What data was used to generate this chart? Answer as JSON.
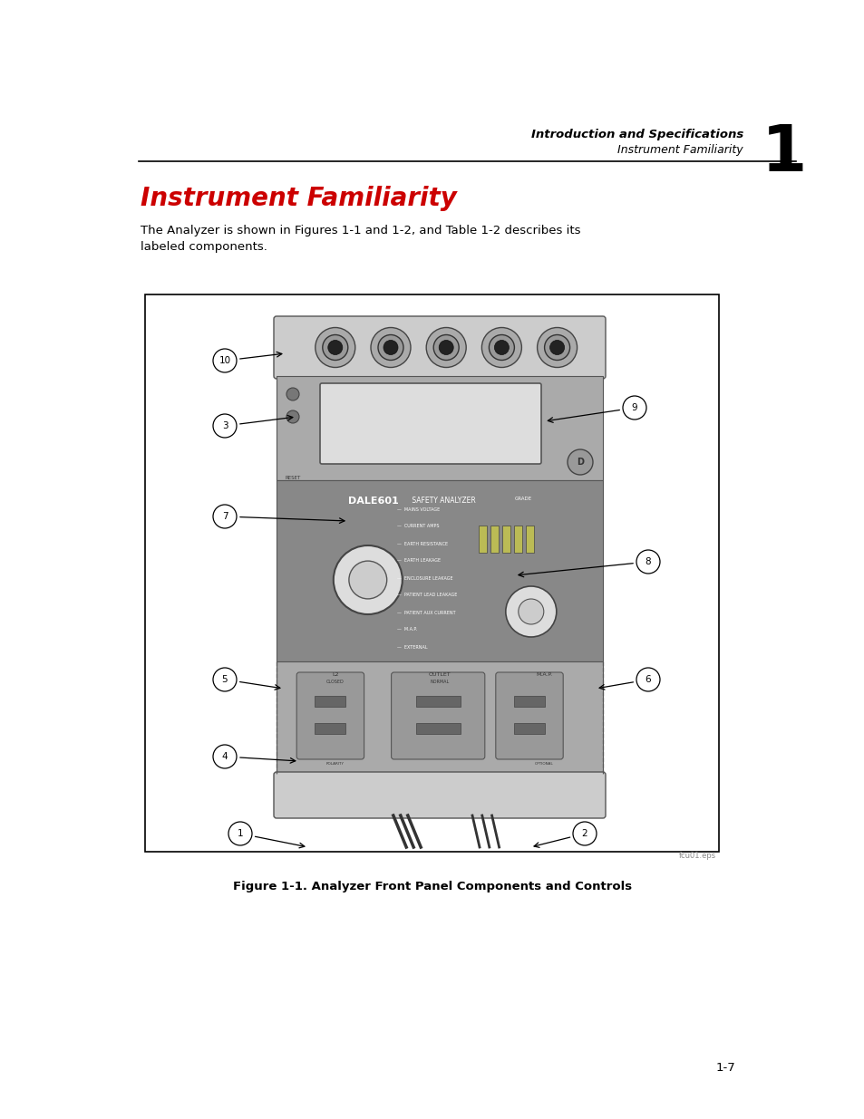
{
  "page_bg": "#ffffff",
  "header_text1": "Introduction and Specifications",
  "header_text2": "Instrument Familiarity",
  "header_number": "1",
  "title": "Instrument Familiarity",
  "title_color": "#cc0000",
  "body_text": "The Analyzer is shown in Figures 1-1 and 1-2, and Table 1-2 describes its\nlabeled components.",
  "figure_caption": "Figure 1-1. Analyzer Front Panel Components and Controls",
  "page_number": "1-7",
  "watermark_text": "fcu01.eps",
  "device_gray": "#aaaaaa",
  "device_dark_gray": "#888888",
  "device_medium_gray": "#999999",
  "device_light_gray": "#cccccc",
  "device_lighter": "#dddddd",
  "connector_gray": "#777777",
  "connector_dark": "#555555",
  "connector_hole": "#333333"
}
